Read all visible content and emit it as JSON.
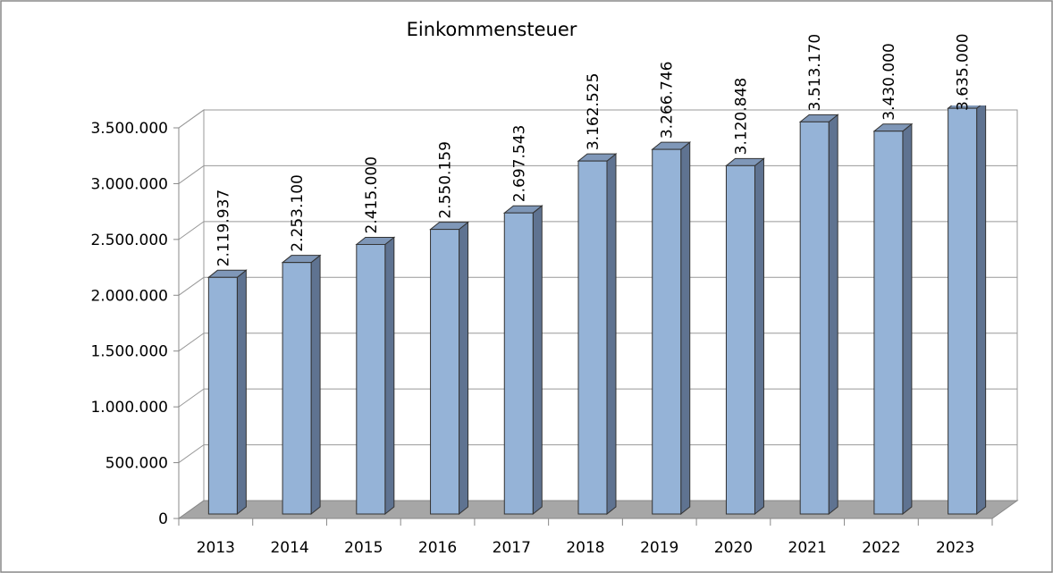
{
  "chart_data": {
    "type": "bar3d",
    "title": "Einkommensteuer",
    "categories": [
      "2013",
      "2014",
      "2015",
      "2016",
      "2017",
      "2018",
      "2019",
      "2020",
      "2021",
      "2022",
      "2023"
    ],
    "values": [
      2119937,
      2253100,
      2415000,
      2550159,
      2697543,
      3162525,
      3266746,
      3120848,
      3513170,
      3430000,
      3635000
    ],
    "value_labels": [
      "2.119.937",
      "2.253.100",
      "2.415.000",
      "2.550.159",
      "2.697.543",
      "3.162.525",
      "3.266.746",
      "3.120.848",
      "3.513.170",
      "3.430.000",
      "3.635.000"
    ],
    "color": "#95b3d7",
    "ylim": [
      0,
      3500000
    ],
    "yticks": [
      0,
      {
        "value": 500000,
        "label": "500.000"
      },
      {
        "value": 1000000,
        "label": "1.000.000"
      },
      {
        "value": 1500000,
        "label": "1.500.000"
      },
      {
        "value": 2000000,
        "label": "2.000.000"
      },
      {
        "value": 2500000,
        "label": "2.500.000"
      },
      {
        "value": 3000000,
        "label": "3.000.000"
      },
      {
        "value": 3500000,
        "label": "3.500.000"
      }
    ],
    "grid": true
  }
}
